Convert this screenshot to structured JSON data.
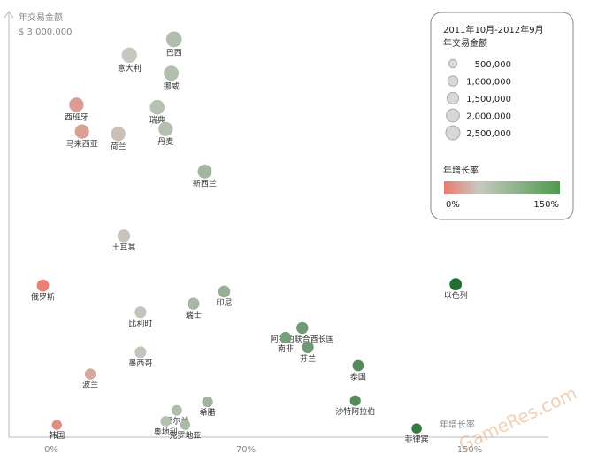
{
  "chart_data": {
    "type": "scatter",
    "ylabel": "年交易金额",
    "ytop_label": "$ 3,000,000",
    "xlabel": "年增长率",
    "x_ticks": [
      "0%",
      "70%",
      "150%"
    ],
    "legend": {
      "title_line1": "2011年10月-2012年9月",
      "title_line2": "年交易金额",
      "sizes": [
        "500,000",
        "1,000,000",
        "1,500,000",
        "2,000,000",
        "2,500,000"
      ],
      "size_values": [
        500000,
        1000000,
        1500000,
        2000000,
        2500000
      ],
      "color_title": "年增长率",
      "color_min": "0%",
      "color_max": "150%"
    },
    "colors": {
      "low": "#ec7a6e",
      "mid": "#c7c9c0",
      "high": "#1e6e2c"
    },
    "points": [
      {
        "label": "巴西",
        "x": 44,
        "y": 2880000,
        "size": 2400000
      },
      {
        "label": "意大利",
        "x": 28,
        "y": 2750000,
        "size": 2250000
      },
      {
        "label": "挪威",
        "x": 43,
        "y": 2600000,
        "size": 2100000
      },
      {
        "label": "西班牙",
        "x": 9,
        "y": 2340000,
        "size": 1900000
      },
      {
        "label": "瑞典",
        "x": 38,
        "y": 2320000,
        "size": 1950000
      },
      {
        "label": "马来西亚",
        "x": 11,
        "y": 2120000,
        "size": 1800000
      },
      {
        "label": "荷兰",
        "x": 24,
        "y": 2100000,
        "size": 1850000
      },
      {
        "label": "丹麦",
        "x": 41,
        "y": 2140000,
        "size": 1800000
      },
      {
        "label": "新西兰",
        "x": 55,
        "y": 1790000,
        "size": 1650000
      },
      {
        "label": "土耳其",
        "x": 26,
        "y": 1260000,
        "size": 1250000
      },
      {
        "label": "俄罗斯",
        "x": -3,
        "y": 850000,
        "size": 1050000
      },
      {
        "label": "以色列",
        "x": 145,
        "y": 860000,
        "size": 1050000
      },
      {
        "label": "印尼",
        "x": 62,
        "y": 800000,
        "size": 1000000
      },
      {
        "label": "瑞士",
        "x": 51,
        "y": 700000,
        "size": 950000
      },
      {
        "label": "比利时",
        "x": 32,
        "y": 630000,
        "size": 900000
      },
      {
        "label": "阿拉伯联合酋长国",
        "x": 90,
        "y": 500000,
        "size": 950000
      },
      {
        "label": "南非",
        "x": 84,
        "y": 420000,
        "size": 900000
      },
      {
        "label": "芬兰",
        "x": 92,
        "y": 340000,
        "size": 900000
      },
      {
        "label": "墨西哥",
        "x": 32,
        "y": 300000,
        "size": 850000
      },
      {
        "label": "泰国",
        "x": 110,
        "y": 190000,
        "size": 800000
      },
      {
        "label": "波兰",
        "x": 14,
        "y": 120000,
        "size": 700000
      },
      {
        "label": "沙特阿拉伯",
        "x": 109,
        "y": -100000,
        "size": 650000
      },
      {
        "label": "希腊",
        "x": 56,
        "y": -110000,
        "size": 650000
      },
      {
        "label": "爱尔兰",
        "x": 45,
        "y": -180000,
        "size": 600000
      },
      {
        "label": "奥地利",
        "x": 41,
        "y": -270000,
        "size": 600000
      },
      {
        "label": "克罗地亚",
        "x": 48,
        "y": -300000,
        "size": 500000
      },
      {
        "label": "韩国",
        "x": 2,
        "y": -300000,
        "size": 500000
      },
      {
        "label": "菲律宾",
        "x": 131,
        "y": -330000,
        "size": 550000
      }
    ]
  },
  "watermark": "GameRes.com"
}
